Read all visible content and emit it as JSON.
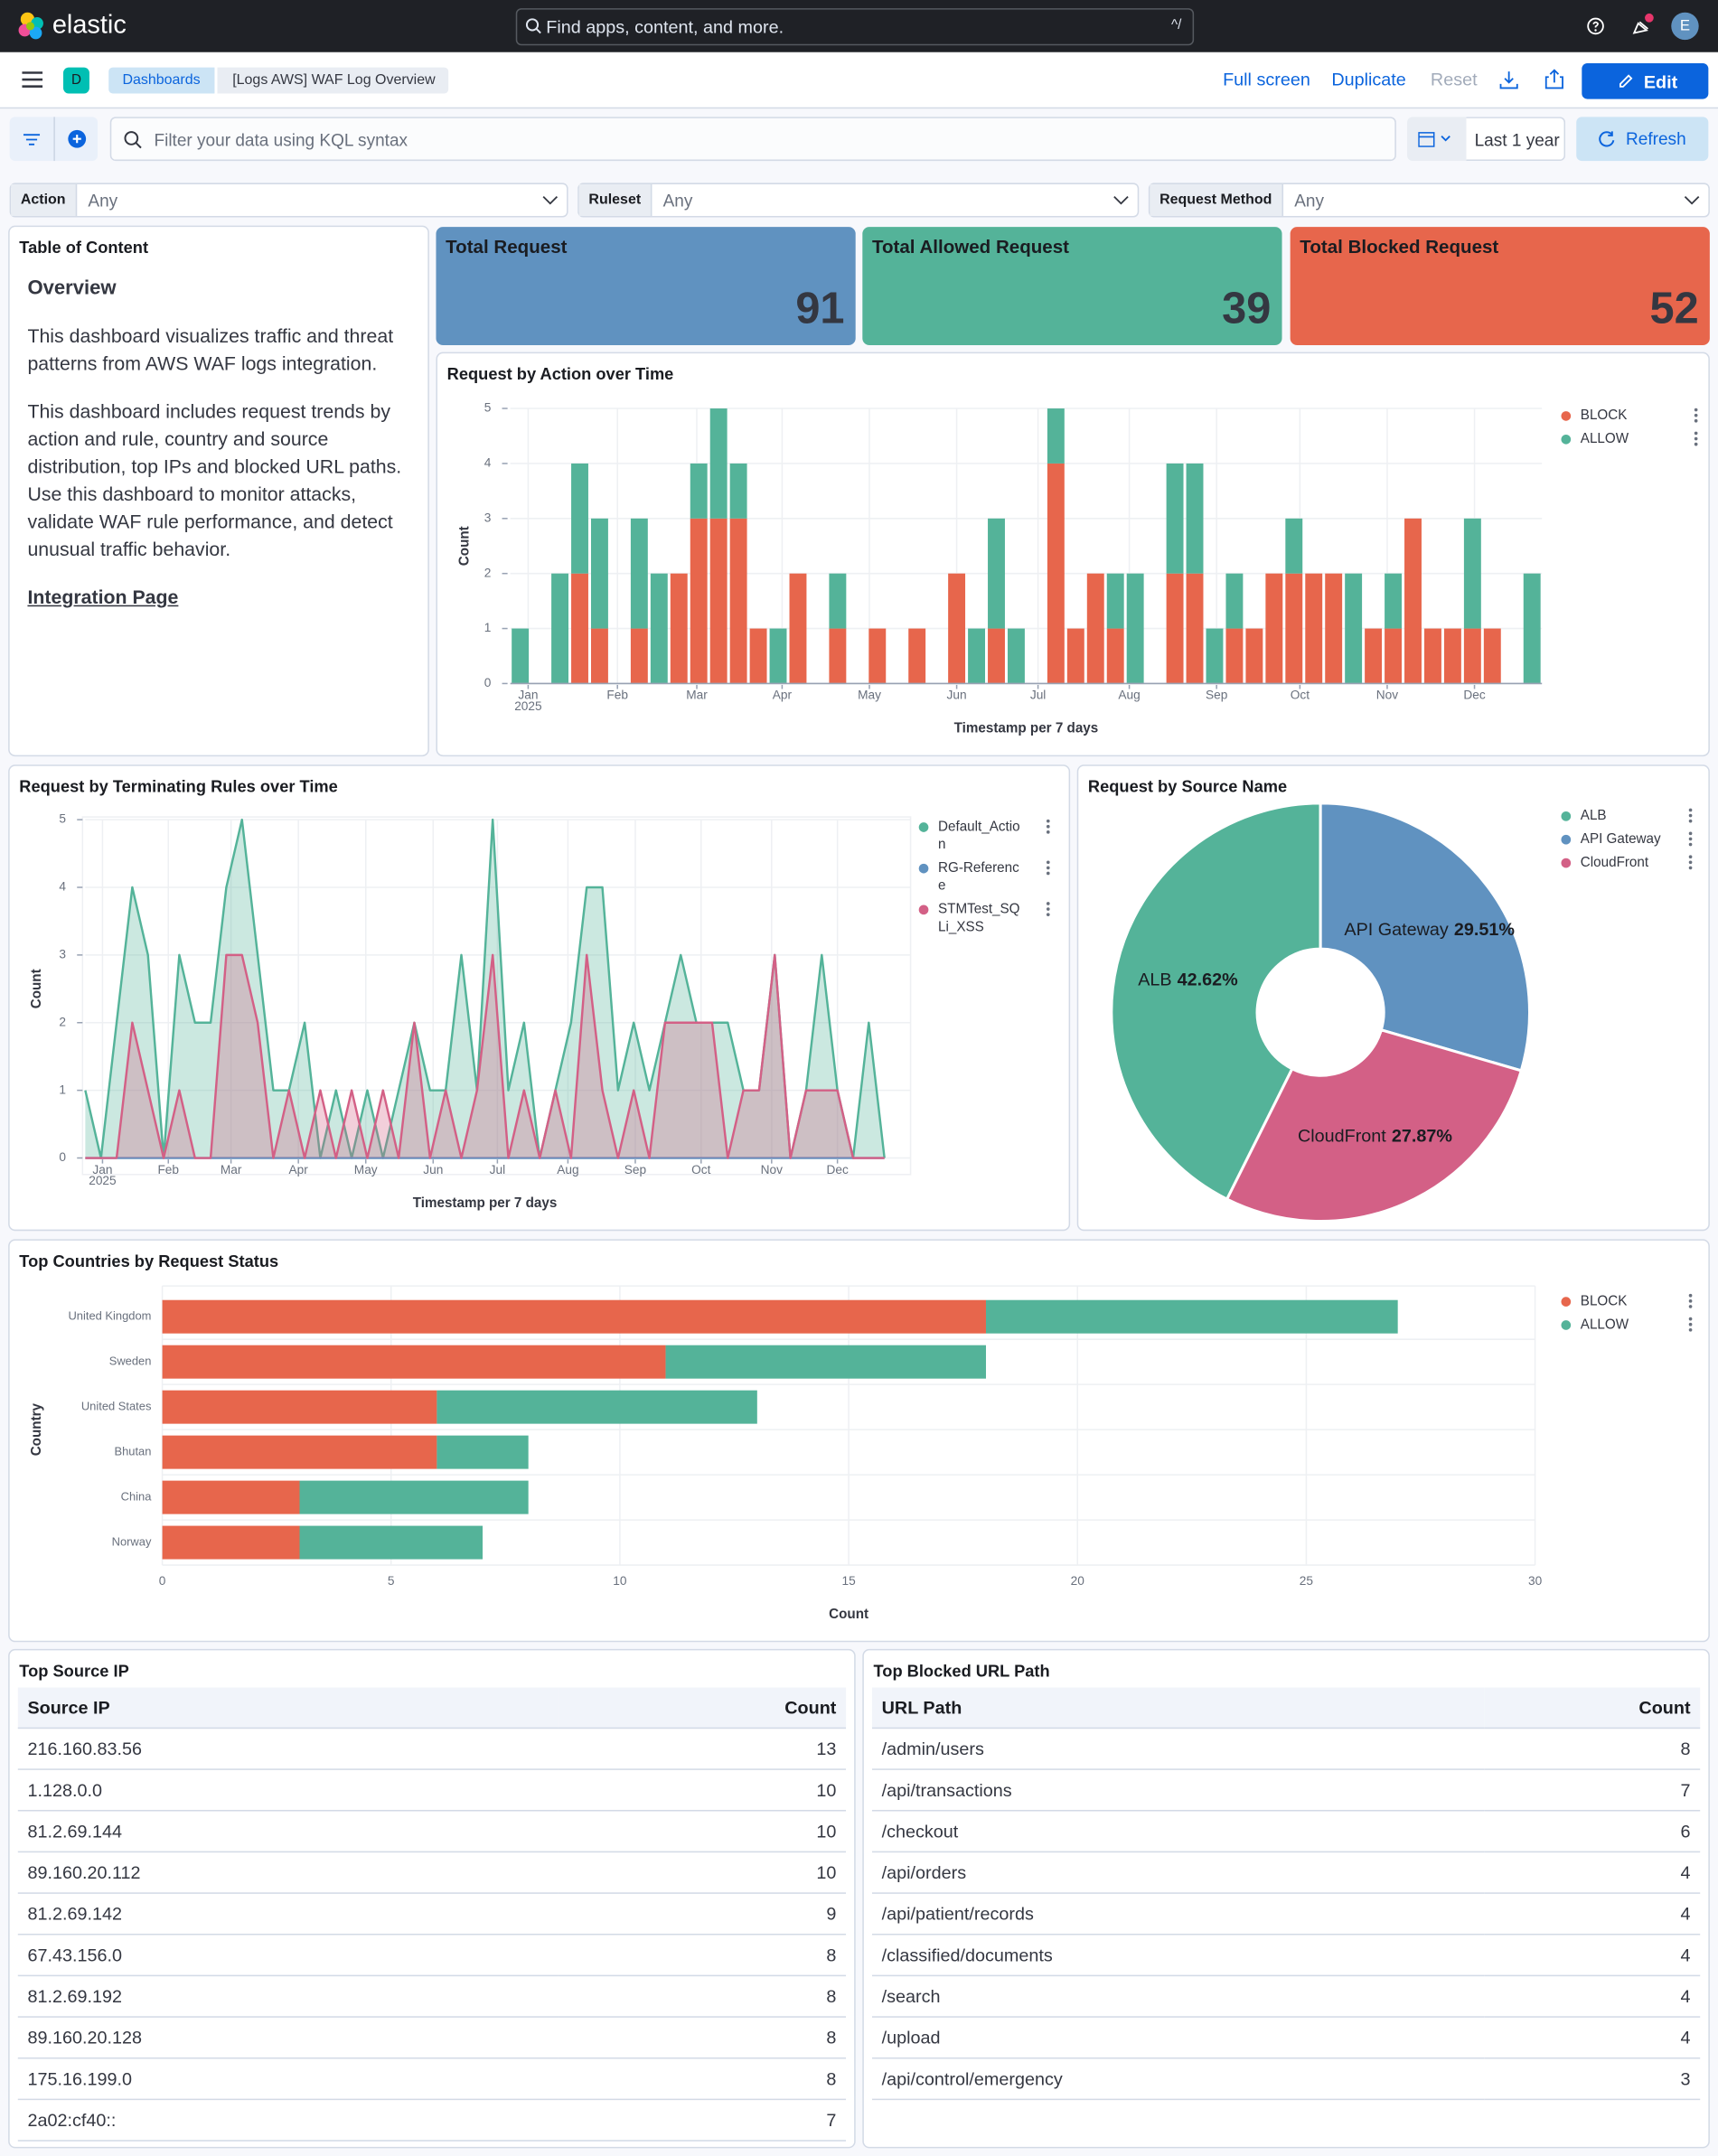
{
  "header": {
    "brand": "elastic",
    "search_placeholder": "Find apps, content, and more.",
    "search_shortcut": "^/",
    "avatar": "E"
  },
  "nav": {
    "badge": "D",
    "breadcrumbs": [
      "Dashboards",
      "[Logs AWS] WAF Log Overview"
    ],
    "actions": [
      "Full screen",
      "Duplicate",
      "Reset"
    ],
    "edit": "Edit"
  },
  "query": {
    "placeholder": "Filter your data using KQL syntax",
    "date": "Last 1 year",
    "refresh": "Refresh"
  },
  "controls": [
    {
      "label": "Action",
      "value": "Any"
    },
    {
      "label": "Ruleset",
      "value": "Any"
    },
    {
      "label": "Request Method",
      "value": "Any"
    }
  ],
  "toc": {
    "title": "Table of Content",
    "heading": "Overview",
    "paragraphs": [
      "This dashboard visualizes traffic and threat patterns from AWS WAF logs integration.",
      "This dashboard includes request trends by action and rule, country and source distribution, top IPs and blocked URL paths. Use this dashboard to monitor attacks, validate WAF rule performance, and detect unusual traffic behavior."
    ],
    "link": "Integration Page"
  },
  "kpis": [
    {
      "title": "Total Request",
      "value": 91,
      "color": "#6092c0"
    },
    {
      "title": "Total Allowed Request",
      "value": 39,
      "color": "#54b399"
    },
    {
      "title": "Total Blocked Request",
      "value": 52,
      "color": "#e7664c"
    }
  ],
  "chart_data": [
    {
      "type": "bar",
      "stacked": true,
      "title": "Request by Action over Time",
      "x_label": "Timestamp per 7 days",
      "y_label": "Count",
      "categories": [
        null,
        null,
        null,
        null,
        null,
        null,
        null,
        null,
        null,
        null,
        null,
        null,
        null,
        null,
        null,
        null,
        null,
        null,
        null,
        null,
        null,
        null,
        null,
        null,
        null,
        null,
        null,
        null,
        null,
        null,
        null,
        null,
        null,
        null,
        null,
        null,
        null,
        null,
        null,
        null,
        null,
        null,
        null,
        null,
        null,
        null,
        null,
        null,
        null,
        null,
        null,
        null
      ],
      "xticks": [
        {
          "value": 0.4,
          "label": "Jan"
        },
        {
          "value": 4.9,
          "label": "Feb"
        },
        {
          "value": 8.9,
          "label": "Mar"
        },
        {
          "value": 13.2,
          "label": "Apr"
        },
        {
          "value": 17.6,
          "label": "May"
        },
        {
          "value": 22.0,
          "label": "Jun"
        },
        {
          "value": 26.1,
          "label": "Jul"
        },
        {
          "value": 30.7,
          "label": "Aug"
        },
        {
          "value": 35.1,
          "label": "Sep"
        },
        {
          "value": 39.3,
          "label": "Oct"
        },
        {
          "value": 43.7,
          "label": "Nov"
        },
        {
          "value": 48.1,
          "label": "Dec"
        }
      ],
      "x_sublabel": "2025",
      "series": [
        {
          "name": "BLOCK",
          "color": "#e7664c",
          "values": [
            0,
            0,
            0,
            2,
            1,
            0,
            1,
            0,
            2,
            3,
            3,
            3,
            1,
            0,
            2,
            0,
            1,
            0,
            1,
            0,
            1,
            0,
            2,
            0,
            1,
            0,
            0,
            4,
            1,
            2,
            1,
            0,
            0,
            2,
            2,
            0,
            1,
            1,
            2,
            2,
            2,
            2,
            0,
            1,
            1,
            3,
            1,
            1,
            1,
            1,
            0,
            0
          ]
        },
        {
          "name": "ALLOW",
          "color": "#54b399",
          "values": [
            1,
            0,
            2,
            2,
            2,
            0,
            2,
            2,
            0,
            1,
            2,
            1,
            0,
            1,
            0,
            0,
            1,
            0,
            0,
            0,
            0,
            0,
            0,
            1,
            2,
            1,
            0,
            1,
            0,
            0,
            1,
            2,
            0,
            2,
            2,
            1,
            1,
            0,
            0,
            1,
            0,
            0,
            2,
            0,
            1,
            0,
            0,
            0,
            2,
            0,
            0,
            2
          ]
        }
      ],
      "ylim": [
        0,
        5
      ],
      "yticks": [
        0,
        1,
        2,
        3,
        4,
        5
      ],
      "grid": true,
      "legend": "right"
    },
    {
      "type": "area",
      "title": "Request by Terminating Rules over Time",
      "x_label": "Timestamp per 7 days",
      "y_label": "Count",
      "categories": [
        null,
        null,
        null,
        null,
        null,
        null,
        null,
        null,
        null,
        null,
        null,
        null,
        null,
        null,
        null,
        null,
        null,
        null,
        null,
        null,
        null,
        null,
        null,
        null,
        null,
        null,
        null,
        null,
        null,
        null,
        null,
        null,
        null,
        null,
        null,
        null,
        null,
        null,
        null,
        null,
        null,
        null,
        null,
        null,
        null,
        null,
        null,
        null,
        null,
        null,
        null,
        null
      ],
      "xticks": [
        {
          "value": 1.1,
          "label": "Jan"
        },
        {
          "value": 5.3,
          "label": "Feb"
        },
        {
          "value": 9.3,
          "label": "Mar"
        },
        {
          "value": 13.6,
          "label": "Apr"
        },
        {
          "value": 17.9,
          "label": "May"
        },
        {
          "value": 22.2,
          "label": "Jun"
        },
        {
          "value": 26.3,
          "label": "Jul"
        },
        {
          "value": 30.8,
          "label": "Aug"
        },
        {
          "value": 35.1,
          "label": "Sep"
        },
        {
          "value": 39.3,
          "label": "Oct"
        },
        {
          "value": 43.8,
          "label": "Nov"
        },
        {
          "value": 48.0,
          "label": "Dec"
        }
      ],
      "x_sublabel": "2025",
      "series": [
        {
          "name": "Default_Action",
          "color": "#54b399",
          "values": [
            1,
            0,
            2,
            4,
            3,
            0,
            3,
            2,
            2,
            4,
            5,
            3,
            1,
            1,
            2,
            0,
            1,
            0,
            1,
            0,
            1,
            2,
            1,
            1,
            3,
            1,
            5,
            1,
            2,
            0,
            1,
            2,
            4,
            4,
            1,
            2,
            1,
            2,
            3,
            2,
            2,
            2,
            1,
            1,
            3,
            0,
            1,
            3,
            1,
            0,
            2,
            0
          ]
        },
        {
          "name": "RG-Reference",
          "color": "#6092c0",
          "values": [
            0,
            0,
            0,
            0,
            0,
            0,
            0,
            0,
            0,
            0,
            0,
            0,
            0,
            0,
            0,
            0,
            0,
            0,
            0,
            0,
            0,
            0,
            0,
            0,
            0,
            0,
            0,
            0,
            0,
            0,
            0,
            0,
            0,
            0,
            0,
            0,
            0,
            0,
            0,
            0,
            0,
            0,
            0,
            0,
            0,
            0,
            0,
            0,
            0,
            0,
            0,
            0
          ]
        },
        {
          "name": "STMTest_SQLi_XSS",
          "color": "#d36086",
          "values": [
            0,
            0,
            0,
            2,
            1,
            0,
            1,
            0,
            0,
            3,
            3,
            2,
            0,
            1,
            0,
            1,
            0,
            1,
            0,
            1,
            0,
            2,
            0,
            1,
            0,
            1,
            3,
            0,
            1,
            0,
            1,
            0,
            3,
            1,
            0,
            1,
            0,
            2,
            2,
            2,
            2,
            0,
            1,
            1,
            3,
            0,
            1,
            1,
            1,
            0,
            0,
            0
          ]
        }
      ],
      "ylim": [
        0,
        5
      ],
      "yticks": [
        0,
        1,
        2,
        3,
        4,
        5
      ],
      "grid": true,
      "legend": "right"
    },
    {
      "type": "pie",
      "donut": true,
      "title": "Request by Source Name",
      "categories": [
        "ALB",
        "API Gateway",
        "CloudFront"
      ],
      "values": [
        42.62,
        29.51,
        27.87
      ],
      "value_labels": [
        "42.62%",
        "29.51%",
        "27.87%"
      ],
      "colors": [
        "#54b399",
        "#6092c0",
        "#d36086"
      ],
      "legend": "right"
    },
    {
      "type": "bar",
      "orientation": "horizontal",
      "stacked": true,
      "title": "Top Countries by Request Status",
      "x_label": "Count",
      "y_label": "Country",
      "categories": [
        "United Kingdom",
        "Sweden",
        "United States",
        "Bhutan",
        "China",
        "Norway"
      ],
      "series": [
        {
          "name": "BLOCK",
          "color": "#e7664c",
          "values": [
            18,
            11,
            6,
            6,
            3,
            3
          ]
        },
        {
          "name": "ALLOW",
          "color": "#54b399",
          "values": [
            9,
            7,
            7,
            2,
            5,
            4
          ]
        }
      ],
      "xlim": [
        0,
        30
      ],
      "xticks": [
        0,
        5,
        10,
        15,
        20,
        25,
        30
      ],
      "grid": true,
      "legend": "right"
    }
  ],
  "tables": [
    {
      "title": "Top Source IP",
      "columns": [
        "Source IP",
        "Count"
      ],
      "rows": [
        [
          "216.160.83.56",
          13
        ],
        [
          "1.128.0.0",
          10
        ],
        [
          "81.2.69.144",
          10
        ],
        [
          "89.160.20.112",
          10
        ],
        [
          "81.2.69.142",
          9
        ],
        [
          "67.43.156.0",
          8
        ],
        [
          "81.2.69.192",
          8
        ],
        [
          "89.160.20.128",
          8
        ],
        [
          "175.16.199.0",
          8
        ],
        [
          "2a02:cf40::",
          7
        ]
      ]
    },
    {
      "title": "Top Blocked URL Path",
      "columns": [
        "URL Path",
        "Count"
      ],
      "rows": [
        [
          "/admin/users",
          8
        ],
        [
          "/api/transactions",
          7
        ],
        [
          "/checkout",
          6
        ],
        [
          "/api/orders",
          4
        ],
        [
          "/api/patient/records",
          4
        ],
        [
          "/classified/documents",
          4
        ],
        [
          "/search",
          4
        ],
        [
          "/upload",
          4
        ],
        [
          "/api/control/emergency",
          3
        ]
      ]
    }
  ]
}
